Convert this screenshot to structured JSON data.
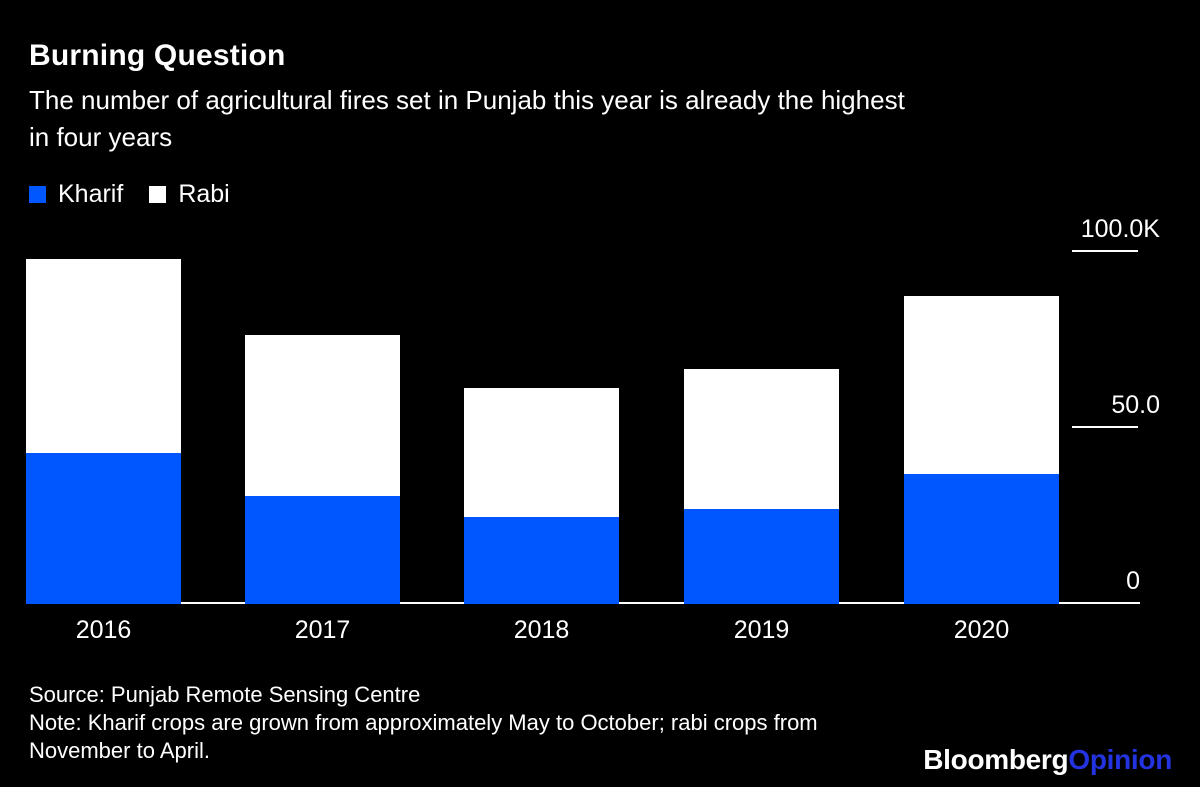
{
  "header": {
    "title": "Burning Question",
    "subtitle_lines": [
      "The number of agricultural fires set in Punjab this year is already the highest",
      "in four years"
    ]
  },
  "legend": {
    "items": [
      {
        "label": "Kharif",
        "color": "#0057ff"
      },
      {
        "label": "Rabi",
        "color": "#ffffff"
      }
    ]
  },
  "chart_data": {
    "type": "bar",
    "stacked": true,
    "title": "Burning Question",
    "subtitle": "The number of agricultural fires set in Punjab this year is already the highest in four years",
    "categories": [
      "2016",
      "2017",
      "2018",
      "2019",
      "2020"
    ],
    "series": [
      {
        "name": "Kharif",
        "color": "#0057ff",
        "values": [
          42.8,
          30.6,
          24.7,
          27.0,
          36.9
        ]
      },
      {
        "name": "Rabi",
        "color": "#ffffff",
        "values": [
          55.1,
          45.7,
          36.6,
          39.7,
          50.5
        ]
      }
    ],
    "values_unit": "thousands of fires (K)",
    "xlabel": "",
    "ylabel": "",
    "ylim": [
      0,
      100
    ],
    "yticks": [
      {
        "value": 100,
        "label": "100.0K"
      },
      {
        "value": 50,
        "label": "50.0"
      },
      {
        "value": 0,
        "label": "0"
      }
    ],
    "legend_position": "top-left",
    "grid": false,
    "axis_side": "right"
  },
  "footer": {
    "source": "Source: Punjab Remote Sensing Centre",
    "note_lines": [
      "Note: Kharif crops are grown from approximately May to October; rabi crops from",
      "November to April."
    ],
    "brand": {
      "part1": "Bloomberg",
      "part2": "Opinion",
      "part2_color": "#2433e0"
    }
  }
}
